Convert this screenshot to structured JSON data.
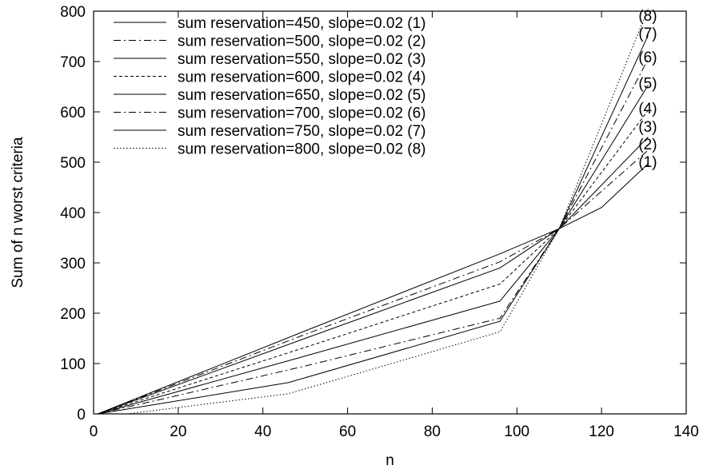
{
  "chart_data": {
    "type": "line",
    "title": "",
    "xlabel": "n",
    "ylabel": "Sum of n worst criteria",
    "xlim": [
      0,
      140
    ],
    "ylim": [
      0,
      800
    ],
    "xticks": [
      0,
      20,
      40,
      60,
      80,
      100,
      120,
      140
    ],
    "yticks": [
      0,
      100,
      200,
      300,
      400,
      500,
      600,
      700,
      800
    ],
    "grid": false,
    "legend_position": "top-left",
    "series": [
      {
        "name": "sum reservation=450, slope=0.02 (1)",
        "end_label": "(1)",
        "dash": "solid",
        "x": [
          1,
          50,
          96,
          110,
          120,
          131
        ],
        "y": [
          0,
          165,
          318,
          368,
          410,
          497
        ]
      },
      {
        "name": "sum reservation=500, slope=0.02 (2)",
        "end_label": "(2)",
        "dash": "dashdot",
        "x": [
          1,
          50,
          96,
          110,
          131
        ],
        "y": [
          0,
          158,
          302,
          368,
          524
        ]
      },
      {
        "name": "sum reservation=550, slope=0.02 (3)",
        "end_label": "(3)",
        "dash": "solid",
        "x": [
          1,
          50,
          96,
          110,
          131
        ],
        "y": [
          0,
          150,
          290,
          368,
          550
        ]
      },
      {
        "name": "sum reservation=600, slope=0.02 (4)",
        "end_label": "(4)",
        "dash": "dashed",
        "x": [
          1,
          50,
          96,
          110,
          131
        ],
        "y": [
          0,
          132,
          258,
          368,
          603
        ]
      },
      {
        "name": "sum reservation=650, slope=0.02 (5)",
        "end_label": "(5)",
        "dash": "solid",
        "x": [
          1,
          50,
          96,
          110,
          131
        ],
        "y": [
          0,
          115,
          224,
          368,
          653
        ]
      },
      {
        "name": "sum reservation=700, slope=0.02 (6)",
        "end_label": "(6)",
        "dash": "dashdot",
        "x": [
          1,
          50,
          96,
          110,
          131
        ],
        "y": [
          0,
          95,
          190,
          368,
          705
        ]
      },
      {
        "name": "sum reservation=750, slope=0.02 (7)",
        "end_label": "(7)",
        "dash": "solid",
        "x": [
          1,
          46,
          96,
          110,
          131
        ],
        "y": [
          0,
          62,
          184,
          368,
          752
        ]
      },
      {
        "name": "sum reservation=800, slope=0.02 (8)",
        "end_label": "(8)",
        "dash": "dotted",
        "x": [
          8,
          46,
          96,
          110,
          131
        ],
        "y": [
          0,
          40,
          163,
          368,
          805
        ]
      }
    ]
  }
}
